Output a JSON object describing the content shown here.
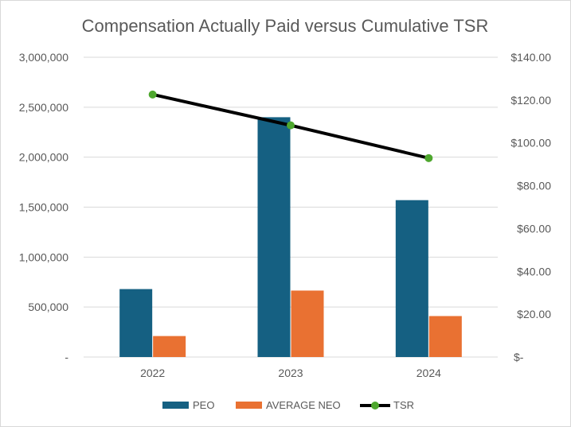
{
  "chart_data": {
    "type": "bar",
    "title": "Compensation Actually Paid versus Cumulative TSR",
    "categories": [
      "2022",
      "2023",
      "2024"
    ],
    "series": [
      {
        "name": "PEO",
        "kind": "bar",
        "axis": "left",
        "color": "#156082",
        "values": [
          680000,
          2400000,
          1570000
        ]
      },
      {
        "name": "AVERAGE NEO",
        "kind": "bar",
        "axis": "left",
        "color": "#E97132",
        "values": [
          210000,
          665000,
          410000
        ]
      },
      {
        "name": "TSR",
        "kind": "line",
        "axis": "right",
        "color": "#000000",
        "marker_color": "#4EA72E",
        "values": [
          122.6,
          108.2,
          92.9
        ]
      }
    ],
    "y_left": {
      "range": [
        0,
        3000000
      ],
      "ticks": [
        0,
        500000,
        1000000,
        1500000,
        2000000,
        2500000,
        3000000
      ],
      "tick_labels": [
        "-",
        "500,000",
        "1,000,000",
        "1,500,000",
        "2,000,000",
        "2,500,000",
        "3,000,000"
      ]
    },
    "y_right": {
      "range": [
        0,
        140
      ],
      "ticks": [
        0,
        20,
        40,
        60,
        80,
        100,
        120,
        140
      ],
      "tick_labels": [
        "$-",
        "$20.00",
        "$40.00",
        "$60.00",
        "$80.00",
        "$100.00",
        "$120.00",
        "$140.00"
      ]
    },
    "grid": true,
    "legend_position": "bottom",
    "colors": {
      "text": "#595959",
      "grid": "#d9d9d9"
    }
  }
}
